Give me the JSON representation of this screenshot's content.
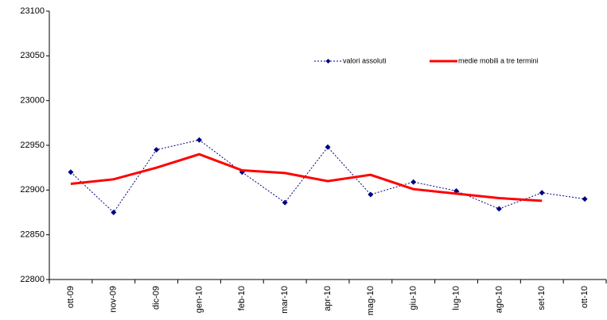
{
  "chart_data": {
    "type": "line",
    "categories": [
      "ott-09",
      "nov-09",
      "dic-09",
      "gen-10",
      "feb-10",
      "mar-10",
      "apr-10",
      "mag-10",
      "giu-10",
      "lug-10",
      "ago-10",
      "set-10",
      "ott-10"
    ],
    "series": [
      {
        "name": "valori assoluti",
        "color": "#000080",
        "dashed": true,
        "marker": true,
        "values": [
          22920,
          22875,
          22945,
          22956,
          22920,
          22886,
          22948,
          22895,
          22909,
          22899,
          22879,
          22897,
          22890
        ]
      },
      {
        "name": "medie mobili a tre termini",
        "color": "#ff0000",
        "dashed": false,
        "marker": false,
        "values": [
          22907,
          22912,
          22925,
          22940,
          22922,
          22919,
          22910,
          22917,
          22901,
          22896,
          22891,
          22888,
          null
        ]
      }
    ],
    "ylim": [
      22800,
      23100
    ],
    "yticks": [
      22800,
      22850,
      22900,
      22950,
      23000,
      23050,
      23100
    ],
    "grid": false
  }
}
